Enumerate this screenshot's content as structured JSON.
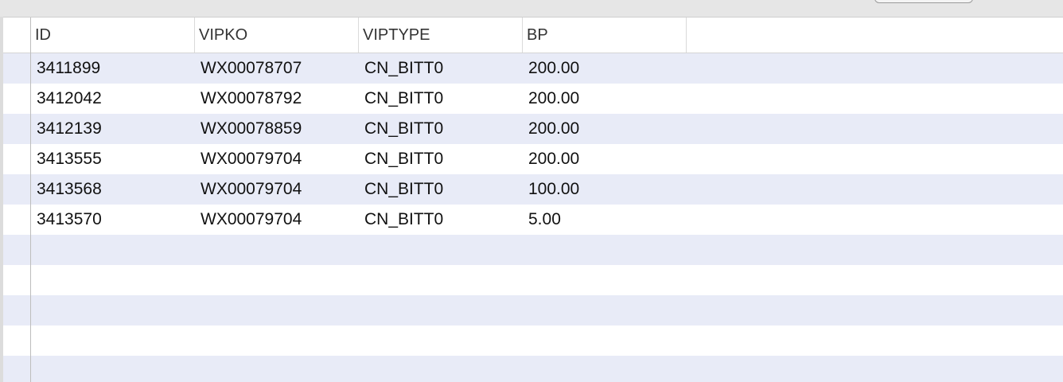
{
  "table": {
    "columns": [
      "ID",
      "VIPKO",
      "VIPTYPE",
      "BP"
    ],
    "rows": [
      {
        "id": "3411899",
        "vipko": "WX00078707",
        "viptype": "CN_BITT0",
        "bp": "200.00"
      },
      {
        "id": "3412042",
        "vipko": "WX00078792",
        "viptype": "CN_BITT0",
        "bp": "200.00"
      },
      {
        "id": "3412139",
        "vipko": "WX00078859",
        "viptype": "CN_BITT0",
        "bp": "200.00"
      },
      {
        "id": "3413555",
        "vipko": "WX00079704",
        "viptype": "CN_BITT0",
        "bp": "200.00"
      },
      {
        "id": "3413568",
        "vipko": "WX00079704",
        "viptype": "CN_BITT0",
        "bp": "100.00"
      },
      {
        "id": "3413570",
        "vipko": "WX00079704",
        "viptype": "CN_BITT0",
        "bp": "5.00"
      }
    ]
  },
  "colors": {
    "stripe": "#e8ebf7",
    "background": "#ffffff",
    "toolbar": "#e6e6e6"
  }
}
